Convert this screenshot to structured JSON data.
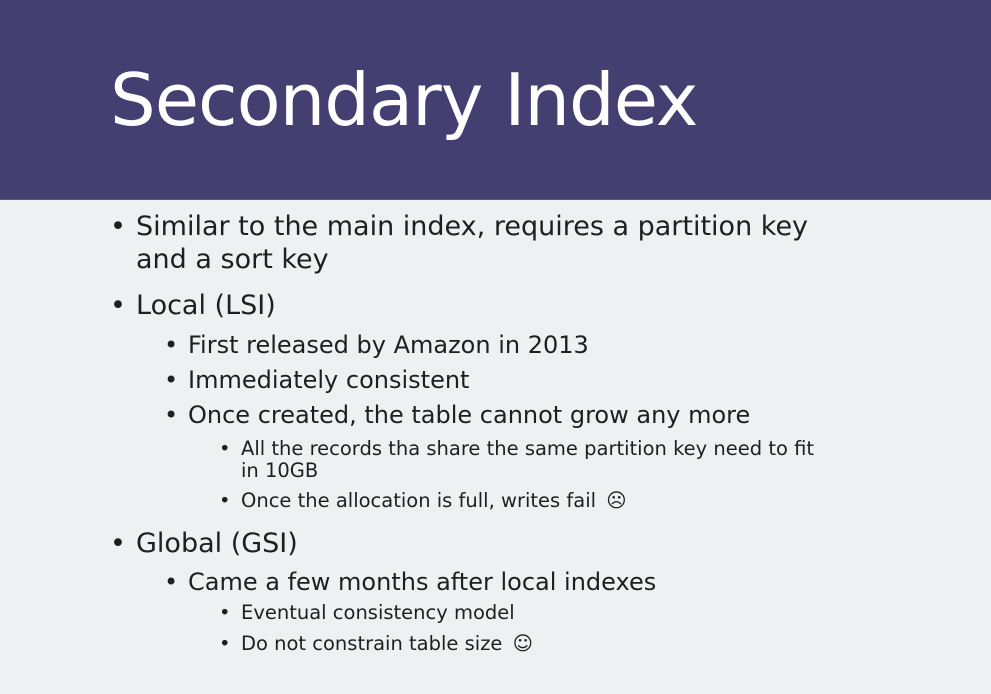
{
  "slide": {
    "title": "Secondary Index",
    "bullet_glyph": "•",
    "items": [
      {
        "text": "Similar to the main index, requires a partition key",
        "continuation": "and a sort key"
      },
      {
        "text": "Local (LSI)"
      },
      {
        "text": "First released by Amazon in 2013"
      },
      {
        "text": "Immediately consistent"
      },
      {
        "text": "Once created, the table cannot grow any more"
      },
      {
        "text": "All the records tha share the same partition key need to fit",
        "continuation": "in 10GB"
      },
      {
        "text": "Once the allocation is full, writes fail",
        "icon": "☹",
        "icon_name": "sad-face-icon"
      },
      {
        "text": "Global (GSI)"
      },
      {
        "text": "Came a few months after local indexes"
      },
      {
        "text": "Eventual consistency model"
      },
      {
        "text": "Do not constrain table size",
        "icon": "☺",
        "icon_name": "smiley-face-icon"
      }
    ]
  }
}
